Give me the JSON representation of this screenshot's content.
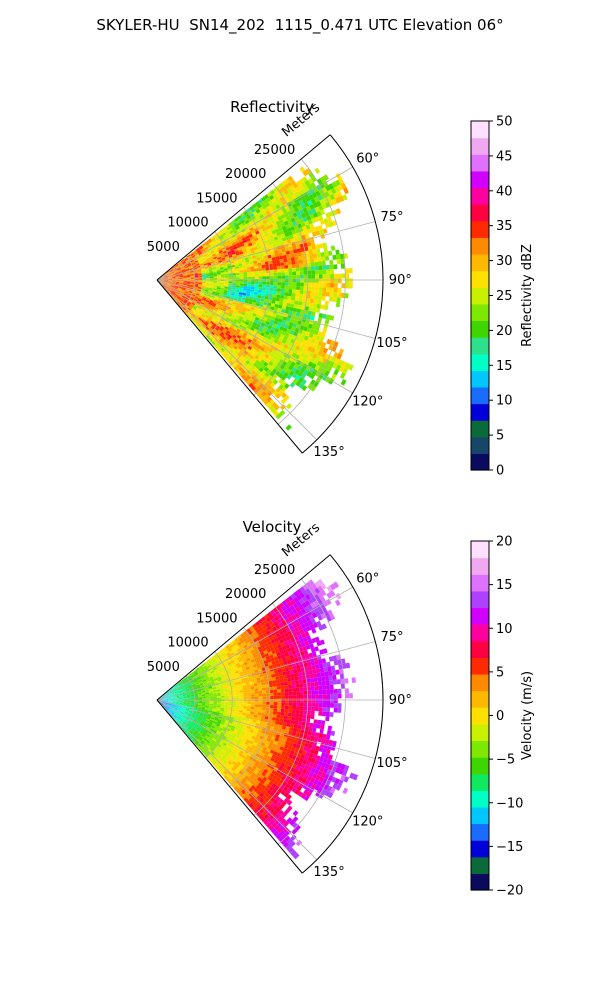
{
  "figure": {
    "suptitle": "SKYLER-HU  SN14_202  1115_0.471 UTC Elevation 06°"
  },
  "chart_data": [
    {
      "type": "heatmap",
      "title": "Reflectivity",
      "radial_label": "Meters",
      "radial_ticks": [
        5000,
        10000,
        15000,
        20000,
        25000
      ],
      "radial_tick_labels": [
        "5000",
        "10000",
        "15000",
        "20000",
        "25000"
      ],
      "radial_max": 30000,
      "azimuth_range_deg": [
        50,
        140
      ],
      "azimuth_ticks": [
        60,
        75,
        90,
        105,
        120,
        135
      ],
      "azimuth_tick_labels": [
        "60°",
        "75°",
        "90°",
        "105°",
        "120°",
        "135°"
      ],
      "grid": true,
      "colorbar": {
        "label": "Reflectivity dBZ",
        "range": [
          0,
          50
        ],
        "ticks": [
          0,
          5,
          10,
          15,
          20,
          25,
          30,
          35,
          40,
          45,
          50
        ],
        "tick_labels": [
          "0",
          "5",
          "10",
          "15",
          "20",
          "25",
          "30",
          "35",
          "40",
          "45",
          "50"
        ],
        "colors": [
          "#0a0a5e",
          "#16476a",
          "#0b6a3a",
          "#0000d8",
          "#1a6cff",
          "#00c8ff",
          "#00ffc4",
          "#2fe08a",
          "#3fd600",
          "#7fe800",
          "#c8f000",
          "#ffe000",
          "#ffb800",
          "#ff8a00",
          "#ff2a00",
          "#ff0040",
          "#ff00a0",
          "#d200ff",
          "#e070ff",
          "#f0a8f0",
          "#ffe0ff"
        ]
      },
      "field_profile": {
        "near_value_dbz": 33,
        "typical_range_dbz": [
          18,
          35
        ],
        "max_range_m": 27000
      }
    },
    {
      "type": "heatmap",
      "title": "Velocity",
      "radial_label": "Meters",
      "radial_ticks": [
        5000,
        10000,
        15000,
        20000,
        25000
      ],
      "radial_tick_labels": [
        "5000",
        "10000",
        "15000",
        "20000",
        "25000"
      ],
      "radial_max": 30000,
      "azimuth_range_deg": [
        50,
        140
      ],
      "azimuth_ticks": [
        60,
        75,
        90,
        105,
        120,
        135
      ],
      "azimuth_tick_labels": [
        "60°",
        "75°",
        "90°",
        "105°",
        "120°",
        "135°"
      ],
      "grid": true,
      "colorbar": {
        "label": "Velocity (m/s)",
        "range": [
          -20,
          20
        ],
        "ticks": [
          -20,
          -15,
          -10,
          -5,
          0,
          5,
          10,
          15,
          20
        ],
        "tick_labels": [
          "−20",
          "−15",
          "−10",
          "−5",
          "0",
          "5",
          "10",
          "15",
          "20"
        ],
        "colors": [
          "#0a0a5e",
          "#0b6a3a",
          "#0000d8",
          "#1a6cff",
          "#00c8ff",
          "#00ffc4",
          "#10e860",
          "#3fd600",
          "#7fe800",
          "#c8f000",
          "#ffe000",
          "#ffb800",
          "#ff8a00",
          "#ff2a00",
          "#ff0040",
          "#ff00a0",
          "#d200ff",
          "#b040ff",
          "#e070ff",
          "#f0a8f0",
          "#ffe0ff"
        ]
      },
      "field_profile": {
        "near_value_ms": -12,
        "far_value_ms": 16,
        "typical_range_ms": [
          -12,
          16
        ],
        "max_range_m": 27000
      }
    }
  ]
}
